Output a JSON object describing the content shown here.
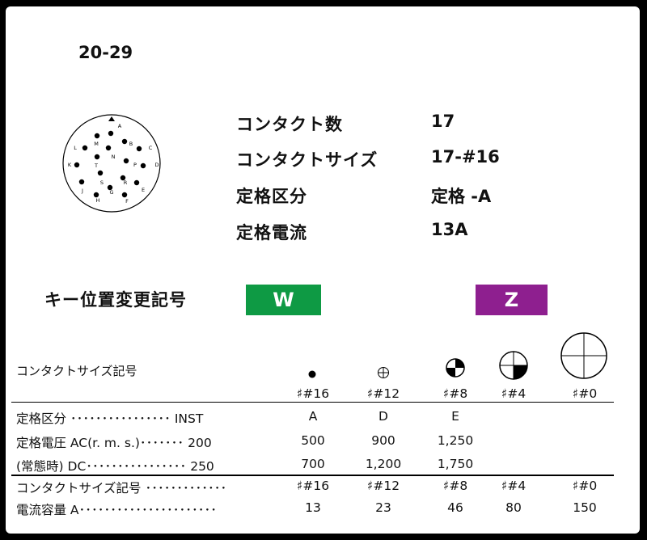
{
  "model": "20-29",
  "pin_letters": [
    "A",
    "B",
    "C",
    "D",
    "E",
    "F",
    "G",
    "H",
    "J",
    "K",
    "L",
    "M",
    "N",
    "P",
    "R",
    "S",
    "T"
  ],
  "specs": [
    {
      "label": "コンタクト数",
      "value": "17"
    },
    {
      "label": "コンタクトサイズ",
      "value": "17-#16"
    },
    {
      "label": "定格区分",
      "value": "定格 -A"
    },
    {
      "label": "定格電流",
      "value": "13A"
    }
  ],
  "key": {
    "label": "キー位置変更記号",
    "options": [
      {
        "code": "W",
        "color": "#0e9a44"
      },
      {
        "code": "Z",
        "color": "#8e1f8f"
      }
    ]
  },
  "table": {
    "sizes_caption": "コンタクトサイズ記号",
    "size_headers": [
      "#16",
      "#12",
      "#8",
      "#4",
      "#0"
    ],
    "rating_row": {
      "label": "定格区分 ････････････････ INST",
      "values": [
        "A",
        "D",
        "E"
      ]
    },
    "ac_row": {
      "label": "定格電圧 AC(r. m. s.)･･･････ 200",
      "values": [
        "500",
        "900",
        "1,250"
      ]
    },
    "dc_row": {
      "label": "(常態時) DC････････････････ 250",
      "values": [
        "700",
        "1,200",
        "1,750"
      ]
    },
    "size_row": {
      "label": "コンタクトサイズ記号 ･････････････",
      "values": [
        "#16",
        "#12",
        "#8",
        "#4",
        "#0"
      ]
    },
    "current_row": {
      "label": "電流容量 A･･････････････････････",
      "values": [
        "13",
        "23",
        "46",
        "80",
        "150"
      ]
    }
  }
}
